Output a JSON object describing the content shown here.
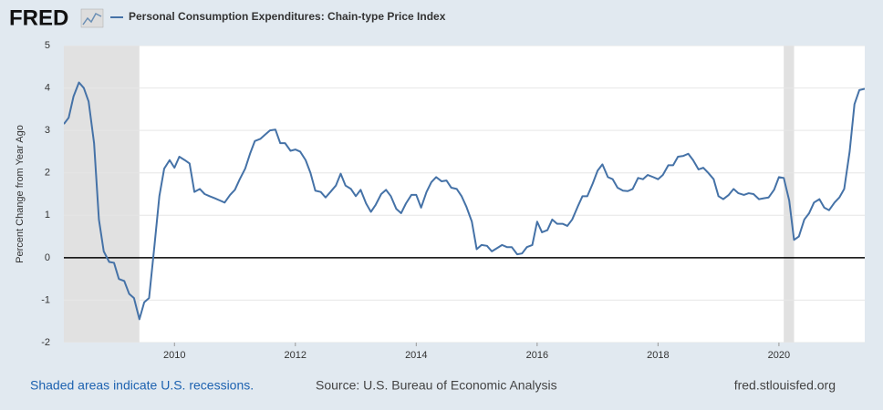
{
  "logo": "FRED",
  "chart_data": {
    "type": "line",
    "ylabel": "Percent Change from Year Ago",
    "x": [
      2008.17,
      2008.25,
      2008.33,
      2008.42,
      2008.5,
      2008.58,
      2008.67,
      2008.75,
      2008.83,
      2008.92,
      2009,
      2009.08,
      2009.17,
      2009.25,
      2009.33,
      2009.42,
      2009.5,
      2009.58,
      2009.67,
      2009.75,
      2009.83,
      2009.92,
      2010,
      2010.08,
      2010.17,
      2010.25,
      2010.33,
      2010.42,
      2010.5,
      2010.58,
      2010.67,
      2010.75,
      2010.83,
      2010.92,
      2011,
      2011.08,
      2011.17,
      2011.25,
      2011.33,
      2011.42,
      2011.5,
      2011.58,
      2011.67,
      2011.75,
      2011.83,
      2011.92,
      2012,
      2012.08,
      2012.17,
      2012.25,
      2012.33,
      2012.42,
      2012.5,
      2012.58,
      2012.67,
      2012.75,
      2012.83,
      2012.92,
      2013,
      2013.08,
      2013.17,
      2013.25,
      2013.33,
      2013.42,
      2013.5,
      2013.58,
      2013.67,
      2013.75,
      2013.83,
      2013.92,
      2014,
      2014.08,
      2014.17,
      2014.25,
      2014.33,
      2014.42,
      2014.5,
      2014.58,
      2014.67,
      2014.75,
      2014.83,
      2014.92,
      2015,
      2015.08,
      2015.17,
      2015.25,
      2015.33,
      2015.42,
      2015.5,
      2015.58,
      2015.67,
      2015.75,
      2015.83,
      2015.92,
      2016,
      2016.08,
      2016.17,
      2016.25,
      2016.33,
      2016.42,
      2016.5,
      2016.58,
      2016.67,
      2016.75,
      2016.83,
      2016.92,
      2017,
      2017.08,
      2017.17,
      2017.25,
      2017.33,
      2017.42,
      2017.5,
      2017.58,
      2017.67,
      2017.75,
      2017.83,
      2017.92,
      2018,
      2018.08,
      2018.17,
      2018.25,
      2018.33,
      2018.42,
      2018.5,
      2018.58,
      2018.67,
      2018.75,
      2018.83,
      2018.92,
      2019,
      2019.08,
      2019.17,
      2019.25,
      2019.33,
      2019.42,
      2019.5,
      2019.58,
      2019.67,
      2019.75,
      2019.83,
      2019.92,
      2020,
      2020.08,
      2020.17,
      2020.25,
      2020.33,
      2020.42,
      2020.5,
      2020.58,
      2020.67,
      2020.75,
      2020.83,
      2020.92,
      2021,
      2021.08,
      2021.17,
      2021.25,
      2021.33,
      2021.42
    ],
    "series": [
      {
        "name": "Personal Consumption Expenditures: Chain-type Price Index",
        "color": "#4572a7",
        "values": [
          3.15,
          3.3,
          3.8,
          4.13,
          4.0,
          3.68,
          2.7,
          0.9,
          0.15,
          -0.1,
          -0.12,
          -0.5,
          -0.55,
          -0.85,
          -0.95,
          -1.45,
          -1.05,
          -0.95,
          0.3,
          1.45,
          2.1,
          2.3,
          2.12,
          2.38,
          2.3,
          2.22,
          1.55,
          1.62,
          1.5,
          1.45,
          1.4,
          1.35,
          1.3,
          1.48,
          1.6,
          1.85,
          2.1,
          2.45,
          2.75,
          2.8,
          2.9,
          3.0,
          3.02,
          2.7,
          2.7,
          2.52,
          2.55,
          2.5,
          2.3,
          2.0,
          1.58,
          1.55,
          1.42,
          1.55,
          1.7,
          1.98,
          1.7,
          1.62,
          1.45,
          1.6,
          1.28,
          1.08,
          1.25,
          1.5,
          1.6,
          1.45,
          1.15,
          1.05,
          1.28,
          1.48,
          1.48,
          1.18,
          1.55,
          1.78,
          1.9,
          1.8,
          1.82,
          1.65,
          1.62,
          1.45,
          1.2,
          0.85,
          0.2,
          0.3,
          0.28,
          0.15,
          0.22,
          0.3,
          0.25,
          0.25,
          0.08,
          0.1,
          0.25,
          0.3,
          0.85,
          0.6,
          0.65,
          0.9,
          0.8,
          0.8,
          0.75,
          0.9,
          1.2,
          1.45,
          1.45,
          1.75,
          2.05,
          2.2,
          1.9,
          1.85,
          1.65,
          1.58,
          1.57,
          1.62,
          1.88,
          1.85,
          1.95,
          1.9,
          1.85,
          1.95,
          2.18,
          2.18,
          2.38,
          2.4,
          2.45,
          2.3,
          2.08,
          2.12,
          2.0,
          1.85,
          1.45,
          1.38,
          1.48,
          1.62,
          1.52,
          1.48,
          1.52,
          1.5,
          1.38,
          1.4,
          1.42,
          1.6,
          1.9,
          1.88,
          1.35,
          0.42,
          0.5,
          0.9,
          1.05,
          1.3,
          1.38,
          1.18,
          1.12,
          1.3,
          1.42,
          1.62,
          2.5,
          3.62,
          3.95,
          3.98
        ]
      }
    ],
    "xlim": [
      2008.17,
      2021.42
    ],
    "xticks": [
      2010,
      2012,
      2014,
      2016,
      2018,
      2020
    ],
    "ylim": [
      -2,
      5
    ],
    "yticks": [
      -2,
      -1,
      0,
      1,
      2,
      3,
      4,
      5
    ],
    "grid": true,
    "recessions": [
      [
        2007.92,
        2009.42
      ],
      [
        2020.08,
        2020.25
      ]
    ]
  },
  "footer": {
    "note": "Shaded areas indicate U.S. recessions.",
    "source": "Source: U.S. Bureau of Economic Analysis",
    "site": "fred.stlouisfed.org"
  }
}
